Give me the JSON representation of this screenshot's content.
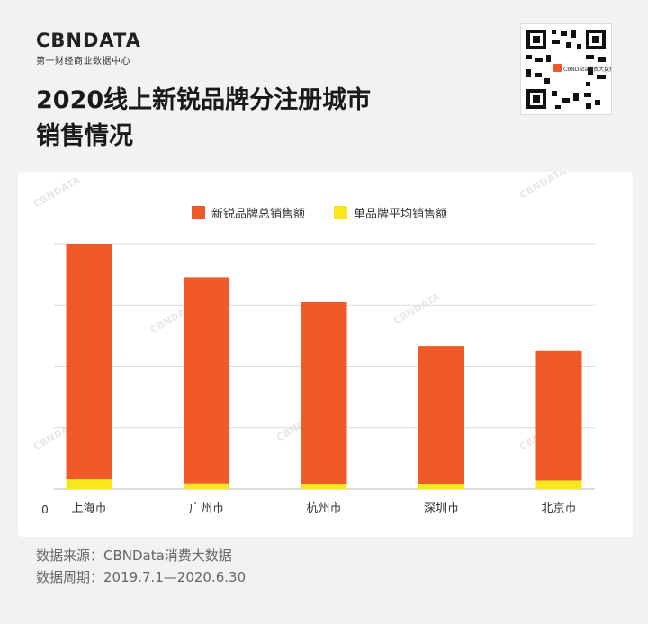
{
  "brand": {
    "name": "CBNDATA",
    "tagline": "第一财经商业数据中心"
  },
  "title": {
    "line1": "2020线上新锐品牌分注册城市",
    "line2": "销售情况"
  },
  "qr_code": {
    "label": "CBNData消费大数据"
  },
  "chart_data": {
    "type": "bar",
    "categories": [
      "上海市",
      "广州市",
      "杭州市",
      "深圳市",
      "北京市"
    ],
    "series": [
      {
        "name": "新锐品牌总销售额",
        "color": "#f05a28",
        "values": [
          96,
          84,
          74,
          56,
          53
        ]
      },
      {
        "name": "单品牌平均销售额",
        "color": "#f8e71c",
        "values": [
          4,
          2.3,
          2.2,
          2.2,
          3.5
        ]
      }
    ],
    "ylim": [
      0,
      100
    ],
    "y_tick_label": "0",
    "grid": true,
    "legend_position": "top"
  },
  "source": {
    "line1": "数据来源：CBNData消费大数据",
    "line2": "数据周期：2019.7.1—2020.6.30"
  },
  "watermark": "CBNDATA"
}
